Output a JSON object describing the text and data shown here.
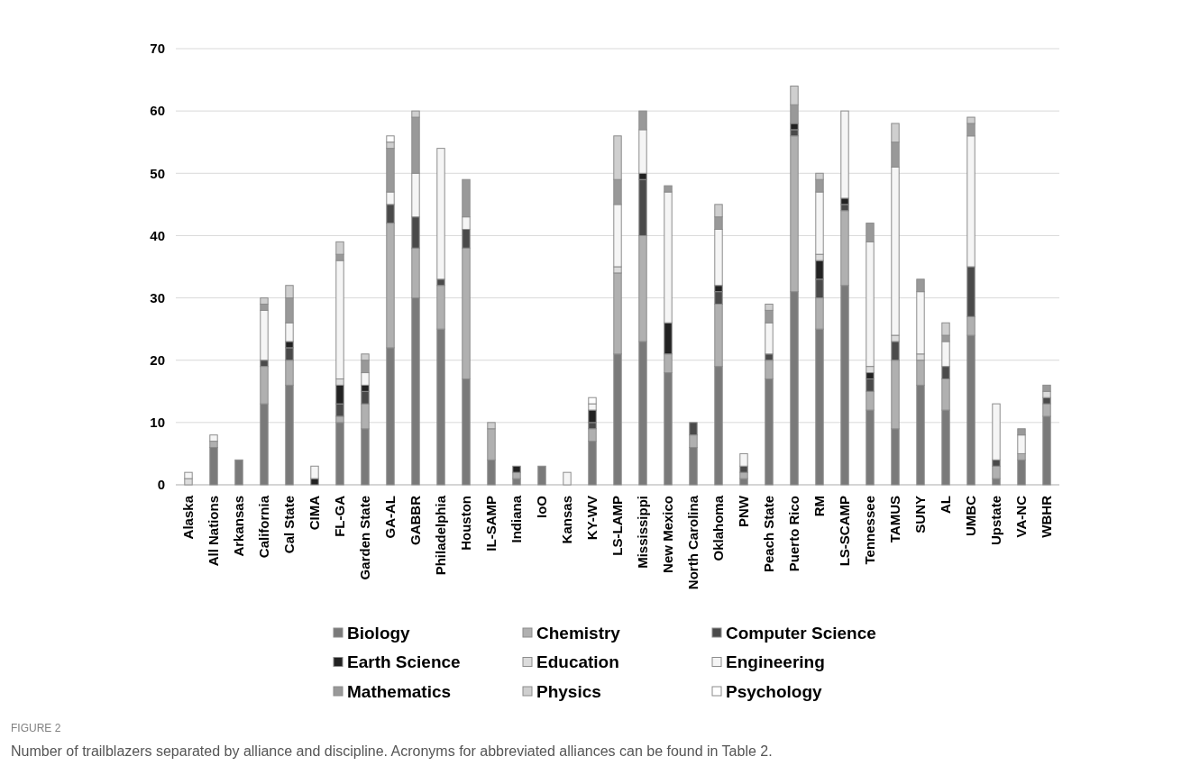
{
  "chart_data": {
    "type": "bar",
    "stacked": true,
    "categories": [
      "Alaska",
      "All Nations",
      "Arkansas",
      "California",
      "Cal State",
      "CIMA",
      "FL-GA",
      "Garden State",
      "GA-AL",
      "GABBR",
      "Philadelphia",
      "Houston",
      "IL-SAMP",
      "Indiana",
      "IoO",
      "Kansas",
      "KY-WV",
      "LS-LAMP",
      "Mississippi",
      "New Mexico",
      "North Carolina",
      "Oklahoma",
      "PNW",
      "Peach State",
      "Puerto Rico",
      "RM",
      "LS-SCAMP",
      "Tennessee",
      "TAMUS",
      "SUNY",
      "AL",
      "UMBC",
      "Upstate",
      "VA-NC",
      "WBHR"
    ],
    "series": [
      {
        "name": "Biology",
        "color": "#7a7a7a",
        "values": [
          0,
          6,
          4,
          13,
          16,
          0,
          10,
          9,
          22,
          30,
          25,
          17,
          4,
          1,
          3,
          0,
          7,
          21,
          23,
          18,
          6,
          19,
          1,
          17,
          31,
          25,
          32,
          12,
          9,
          16,
          12,
          24,
          1,
          4,
          11
        ]
      },
      {
        "name": "Chemistry",
        "color": "#b0b0b0",
        "values": [
          0,
          1,
          0,
          6,
          4,
          0,
          1,
          4,
          20,
          8,
          7,
          21,
          5,
          1,
          0,
          0,
          2,
          13,
          17,
          3,
          2,
          10,
          1,
          3,
          25,
          5,
          12,
          3,
          11,
          4,
          5,
          3,
          2,
          1,
          2
        ]
      },
      {
        "name": "Computer Science",
        "color": "#4a4a4a",
        "values": [
          0,
          0,
          0,
          1,
          2,
          0,
          2,
          2,
          3,
          5,
          1,
          3,
          0,
          0,
          0,
          0,
          1,
          0,
          9,
          0,
          2,
          2,
          1,
          1,
          1,
          3,
          1,
          2,
          3,
          0,
          2,
          8,
          1,
          0,
          1
        ]
      },
      {
        "name": "Earth Science",
        "color": "#222222",
        "values": [
          0,
          0,
          0,
          0,
          1,
          1,
          3,
          1,
          0,
          0,
          0,
          0,
          0,
          1,
          0,
          0,
          2,
          0,
          1,
          5,
          0,
          1,
          0,
          0,
          1,
          3,
          1,
          1,
          0,
          0,
          0,
          0,
          0,
          0,
          0
        ]
      },
      {
        "name": "Education",
        "color": "#dcdcdc",
        "values": [
          1,
          0,
          0,
          0,
          0,
          0,
          1,
          0,
          0,
          0,
          0,
          0,
          0,
          0,
          0,
          0,
          0,
          1,
          0,
          0,
          0,
          0,
          0,
          0,
          0,
          1,
          0,
          1,
          1,
          1,
          0,
          0,
          0,
          0,
          1
        ]
      },
      {
        "name": "Engineering",
        "color": "#f5f5f5",
        "values": [
          1,
          1,
          0,
          8,
          3,
          2,
          19,
          2,
          2,
          7,
          21,
          2,
          0,
          0,
          0,
          2,
          1,
          10,
          7,
          21,
          0,
          9,
          2,
          5,
          0,
          10,
          14,
          20,
          27,
          10,
          4,
          21,
          9,
          3,
          0
        ]
      },
      {
        "name": "Mathematics",
        "color": "#999999",
        "values": [
          0,
          0,
          0,
          1,
          4,
          0,
          1,
          2,
          7,
          9,
          0,
          6,
          0,
          0,
          0,
          0,
          0,
          4,
          3,
          1,
          0,
          2,
          0,
          2,
          3,
          2,
          0,
          3,
          4,
          2,
          1,
          2,
          0,
          1,
          1
        ]
      },
      {
        "name": "Physics",
        "color": "#cfcfcf",
        "values": [
          0,
          0,
          0,
          1,
          2,
          0,
          2,
          1,
          1,
          1,
          0,
          0,
          1,
          0,
          0,
          0,
          0,
          7,
          0,
          0,
          0,
          2,
          0,
          1,
          3,
          1,
          0,
          0,
          3,
          0,
          2,
          1,
          0,
          0,
          0
        ]
      },
      {
        "name": "Psychology",
        "color": "#ffffff",
        "values": [
          0,
          0,
          0,
          0,
          0,
          0,
          0,
          0,
          1,
          0,
          0,
          0,
          0,
          0,
          0,
          0,
          1,
          0,
          0,
          0,
          0,
          0,
          0,
          0,
          0,
          0,
          0,
          0,
          0,
          0,
          0,
          0,
          0,
          0,
          0
        ]
      }
    ],
    "ylim": [
      0,
      70
    ],
    "yticks": [
      0,
      10,
      20,
      30,
      40,
      50,
      60,
      70
    ],
    "grid": "y",
    "legend": "bottom",
    "annotations": [
      "FIGURE 2",
      "Number of trailblazers separated by alliance and discipline. Acronyms for abbreviated alliances can be found in Table 2."
    ]
  }
}
